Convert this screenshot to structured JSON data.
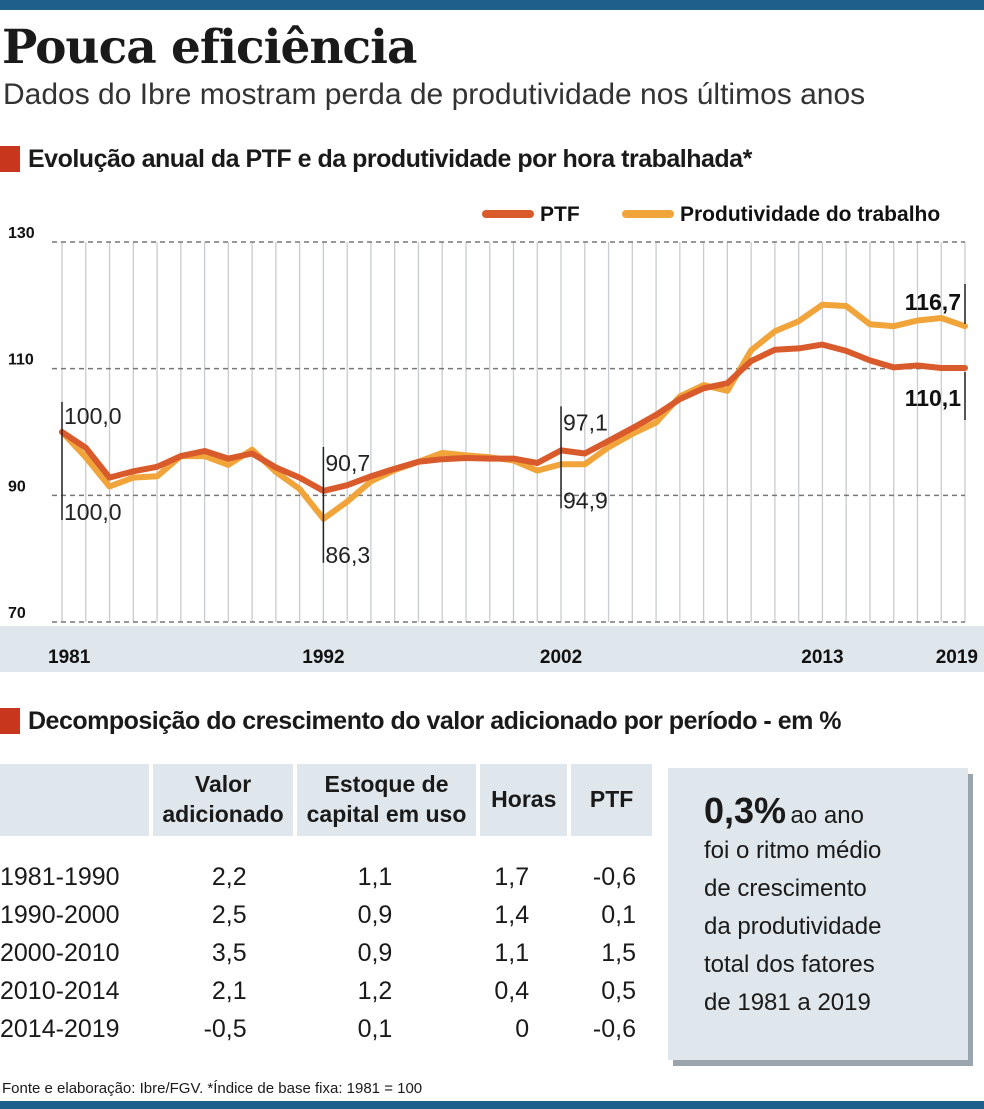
{
  "title": "Pouca eficiência",
  "subtitle": "Dados do Ibre mostram perda de produtividade nos últimos anos",
  "chart_section_title": "Evolução anual da PTF e da produtividade por hora trabalhada*",
  "table_section_title": "Decomposição do crescimento do valor adicionado por período - em %",
  "colors": {
    "ptf": "#d95a2b",
    "labor": "#f0a43a",
    "accent": "#c8361d",
    "bar": "#1f5f8b",
    "band": "#dfe6ec"
  },
  "chart_data": {
    "type": "line",
    "title": "Evolução anual da PTF e da produtividade por hora trabalhada*",
    "x": [
      1981,
      1982,
      1983,
      1984,
      1985,
      1986,
      1987,
      1988,
      1989,
      1990,
      1991,
      1992,
      1993,
      1994,
      1995,
      1996,
      1997,
      1998,
      1999,
      2000,
      2001,
      2002,
      2003,
      2004,
      2005,
      2006,
      2007,
      2008,
      2009,
      2010,
      2011,
      2012,
      2013,
      2014,
      2015,
      2016,
      2017,
      2018,
      2019
    ],
    "series": [
      {
        "name": "PTF",
        "color": "#d95a2b",
        "values": [
          100.0,
          97.5,
          92.8,
          93.8,
          94.5,
          96.2,
          97.0,
          95.8,
          96.6,
          94.4,
          92.8,
          90.7,
          91.6,
          93.0,
          94.2,
          95.3,
          95.7,
          95.9,
          95.8,
          95.8,
          95.1,
          97.1,
          96.6,
          98.6,
          100.6,
          102.7,
          105.2,
          106.9,
          107.7,
          111.2,
          113.0,
          113.2,
          113.8,
          112.8,
          111.3,
          110.2,
          110.5,
          110.1,
          110.1
        ]
      },
      {
        "name": "Produtividade do trabalho",
        "color": "#f0a43a",
        "values": [
          100.0,
          96.0,
          91.4,
          92.8,
          93.0,
          96.2,
          96.2,
          94.8,
          97.2,
          93.7,
          91.0,
          86.3,
          89.0,
          92.2,
          94.0,
          95.3,
          96.7,
          96.3,
          96.0,
          95.5,
          93.9,
          94.9,
          94.9,
          97.6,
          99.7,
          101.5,
          105.6,
          107.4,
          106.5,
          112.9,
          115.9,
          117.5,
          120.1,
          119.9,
          117.0,
          116.7,
          117.6,
          118.0,
          116.7
        ]
      }
    ],
    "ylim": [
      70,
      130
    ],
    "yticks": [
      70,
      90,
      110,
      130
    ],
    "xticks": [
      1981,
      1992,
      2002,
      2013,
      2019
    ],
    "annotations": [
      {
        "year": 1981,
        "top": "100,0",
        "bottom": "100,0"
      },
      {
        "year": 1992,
        "top": "90,7",
        "bottom": "86,3"
      },
      {
        "year": 2002,
        "top": "97,1",
        "bottom": "94,9"
      },
      {
        "year": 2019,
        "top": "116,7",
        "bottom": "110,1"
      }
    ],
    "legend_position": "top-right",
    "grid": true
  },
  "table": {
    "headers": [
      "",
      "Valor adicionado",
      "Estoque de capital em uso",
      "Horas",
      "PTF"
    ],
    "rows": [
      [
        "1981-1990",
        "2,2",
        "1,1",
        "1,7",
        "-0,6"
      ],
      [
        "1990-2000",
        "2,5",
        "0,9",
        "1,4",
        "0,1"
      ],
      [
        "2000-2010",
        "3,5",
        "0,9",
        "1,1",
        "1,5"
      ],
      [
        "2010-2014",
        "2,1",
        "1,2",
        "0,4",
        "0,5"
      ],
      [
        "2014-2019",
        "-0,5",
        "0,1",
        "0",
        "-0,6"
      ]
    ]
  },
  "highlight": {
    "value": "0,3%",
    "lead": "ao ano",
    "lines": [
      "foi o ritmo médio",
      "de crescimento",
      "da produtividade",
      "total dos fatores",
      "de 1981 a 2019"
    ]
  },
  "source": "Fonte e elaboração: Ibre/FGV. *Índice de base fixa: 1981 = 100"
}
